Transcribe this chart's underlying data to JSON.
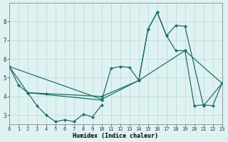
{
  "title": "",
  "xlabel": "Humidex (Indice chaleur)",
  "ylabel": "",
  "background_color": "#dff2f2",
  "grid_color": "#b8d8d8",
  "line_color": "#1e6e6a",
  "xlim": [
    0,
    23
  ],
  "ylim": [
    2.5,
    9.0
  ],
  "yticks": [
    3,
    4,
    5,
    6,
    7,
    8
  ],
  "xticks": [
    0,
    1,
    2,
    3,
    4,
    5,
    6,
    7,
    8,
    9,
    10,
    11,
    12,
    13,
    14,
    15,
    16,
    17,
    18,
    19,
    20,
    21,
    22,
    23
  ],
  "line1_x": [
    0,
    1,
    2,
    10,
    11,
    12,
    13,
    14,
    15,
    16,
    17,
    18,
    19,
    21,
    23
  ],
  "line1_y": [
    5.6,
    4.6,
    4.2,
    3.8,
    5.5,
    5.6,
    5.55,
    4.85,
    7.6,
    8.5,
    7.25,
    7.8,
    7.75,
    3.5,
    4.7
  ],
  "line2_x": [
    2,
    3,
    4,
    5,
    6,
    7,
    8,
    9,
    10
  ],
  "line2_y": [
    4.2,
    3.5,
    3.0,
    2.65,
    2.75,
    2.65,
    3.05,
    2.9,
    3.55
  ],
  "line3_x": [
    0,
    10,
    14,
    15,
    16,
    17,
    18,
    19,
    20,
    21,
    22,
    23
  ],
  "line3_y": [
    5.6,
    3.85,
    4.85,
    7.6,
    8.5,
    7.25,
    6.45,
    6.45,
    3.5,
    3.55,
    3.5,
    4.7
  ],
  "line4_x": [
    0,
    2,
    4,
    10,
    14,
    19,
    23
  ],
  "line4_y": [
    5.6,
    4.2,
    4.15,
    4.0,
    4.85,
    6.45,
    4.7
  ]
}
